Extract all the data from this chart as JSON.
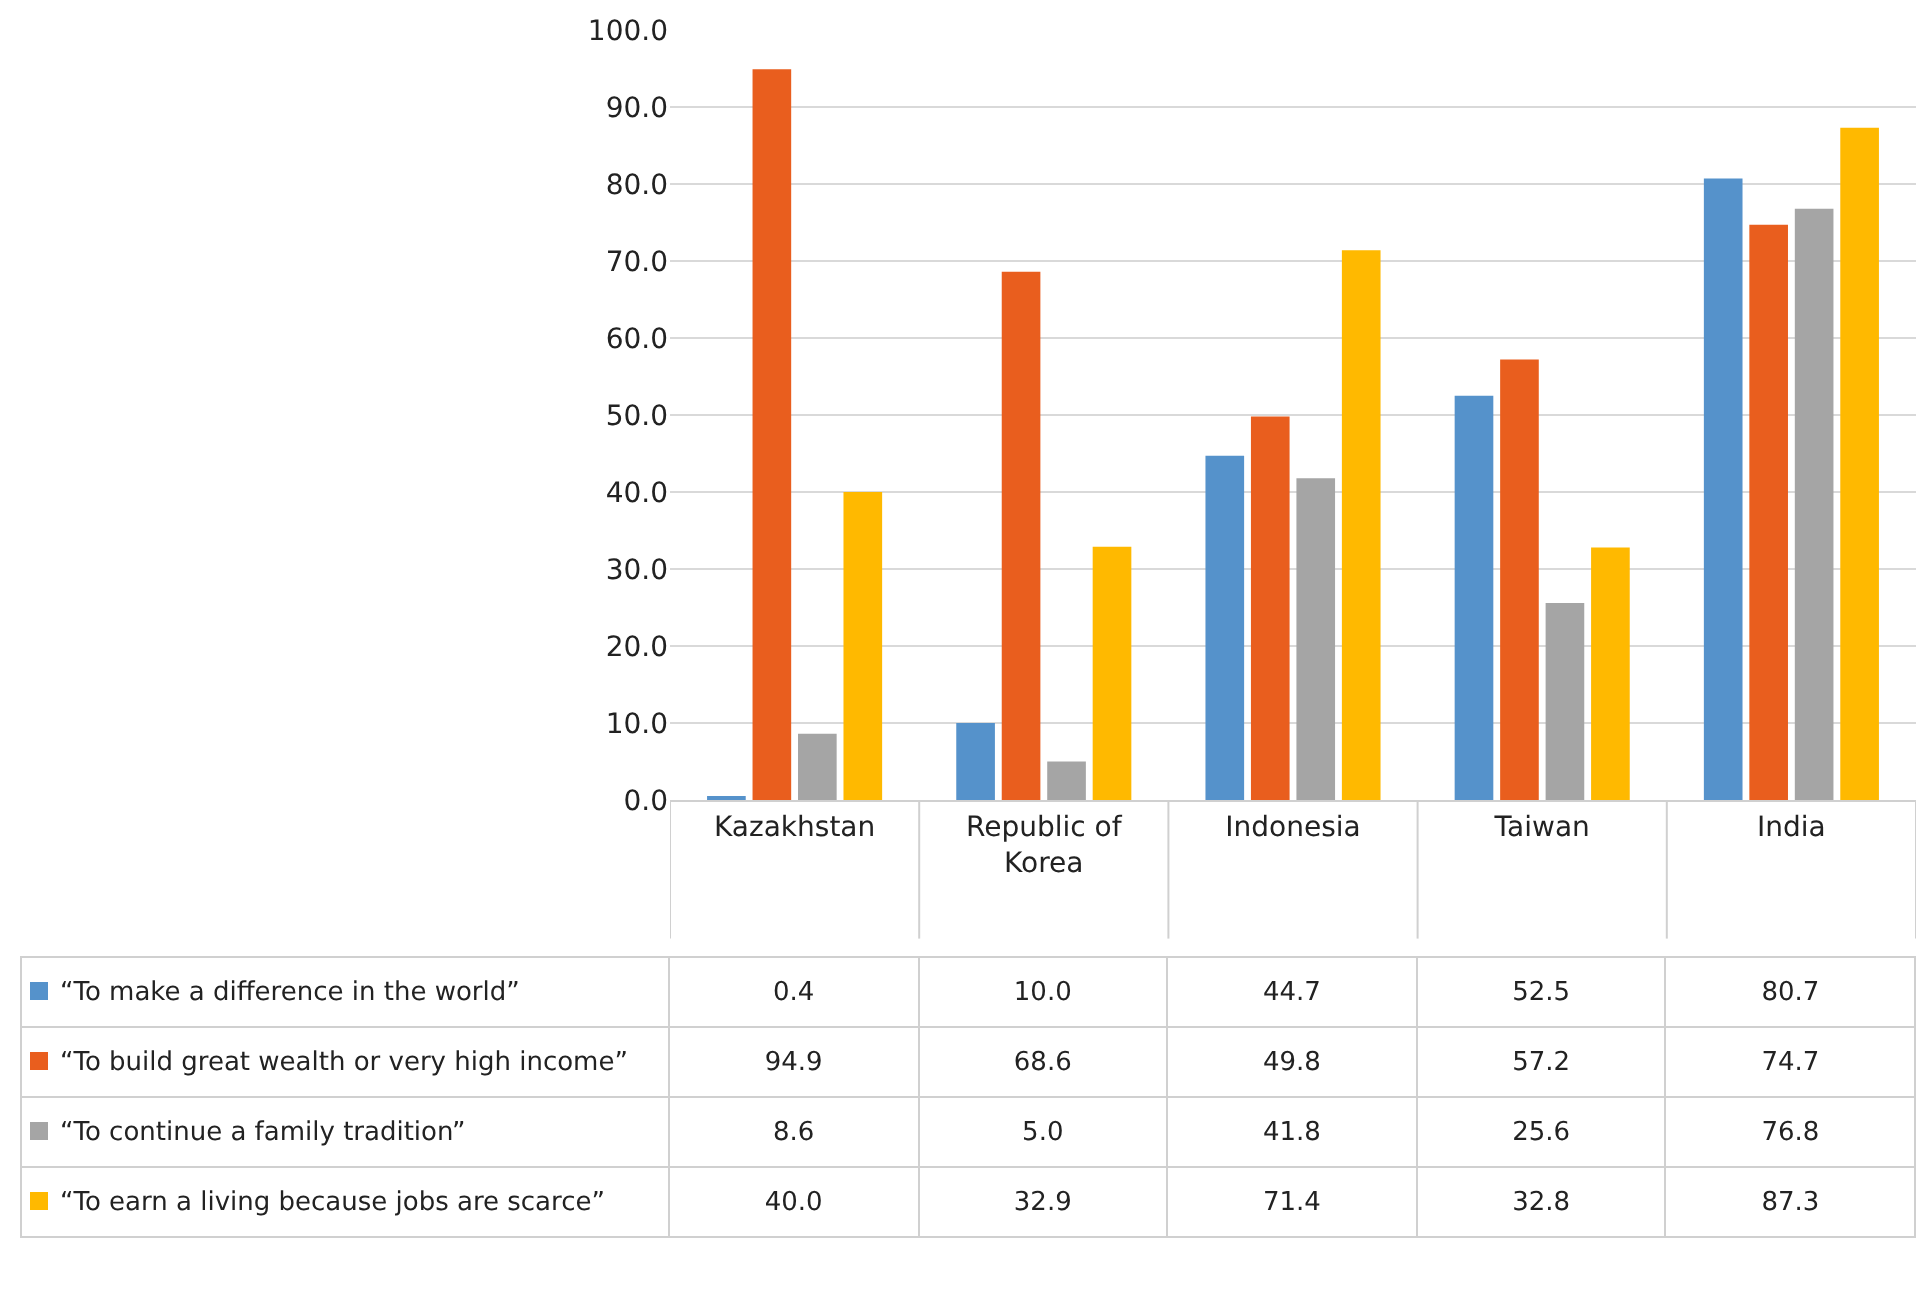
{
  "chart_data": {
    "type": "bar",
    "categories": [
      "Kazakhstan",
      "Republic of Korea",
      "Indonesia",
      "Taiwan",
      "India"
    ],
    "series": [
      {
        "name": "“To make a difference in the world”",
        "color": "#5592cb",
        "values": [
          0.4,
          10.0,
          44.7,
          52.5,
          80.7
        ],
        "value_labels": [
          "0.4",
          "10.0",
          "44.7",
          "52.5",
          "80.7"
        ]
      },
      {
        "name": "“To build great wealth or very high income”",
        "color": "#e95e1e",
        "values": [
          94.9,
          68.6,
          49.8,
          57.2,
          74.7
        ],
        "value_labels": [
          "94.9",
          "68.6",
          "49.8",
          "57.2",
          "74.7"
        ]
      },
      {
        "name": "“To continue a family tradition”",
        "color": "#a5a5a5",
        "values": [
          8.6,
          5.0,
          41.8,
          25.6,
          76.8
        ],
        "value_labels": [
          "8.6",
          "5.0",
          "41.8",
          "25.6",
          "76.8"
        ]
      },
      {
        "name": "“To earn a living because jobs are scarce”",
        "color": "#ffb900",
        "values": [
          40.0,
          32.9,
          71.4,
          32.8,
          87.3
        ],
        "value_labels": [
          "40.0",
          "32.9",
          "71.4",
          "32.8",
          "87.3"
        ]
      }
    ],
    "ylim": [
      0,
      100
    ],
    "yticks": [
      {
        "value": 0,
        "label": "0.0"
      },
      {
        "value": 10,
        "label": "10.0"
      },
      {
        "value": 20,
        "label": "20.0"
      },
      {
        "value": 30,
        "label": "30.0"
      },
      {
        "value": 40,
        "label": "40.0"
      },
      {
        "value": 50,
        "label": "50.0"
      },
      {
        "value": 60,
        "label": "60.0"
      },
      {
        "value": 70,
        "label": "70.0"
      },
      {
        "value": 80,
        "label": "80.0"
      },
      {
        "value": 90,
        "label": "90.0"
      },
      {
        "value": 100,
        "label": "100.0"
      }
    ],
    "grid": "y",
    "legend": "bottom left"
  }
}
